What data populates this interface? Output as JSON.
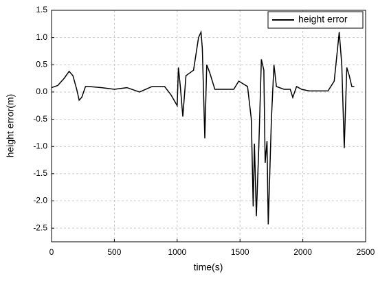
{
  "chart_data": {
    "type": "line",
    "xlabel": "time(s)",
    "ylabel": "height error(m)",
    "xlim": [
      0,
      2500
    ],
    "xticks": [
      0,
      500,
      1000,
      1500,
      2000,
      2500
    ],
    "ylim": [
      -2.75,
      1.5
    ],
    "yticks": [
      1.5,
      {
        "value": 1,
        "label": "1.0"
      },
      0.5,
      {
        "value": 0,
        "label": "0.0"
      },
      -0.5,
      {
        "value": -1,
        "label": "-1.0"
      },
      -1.5,
      {
        "value": -2,
        "label": "-2.0"
      },
      -2.5
    ],
    "grid": true,
    "legend": "upper right",
    "series": [
      {
        "name": "height error",
        "color": "#000000",
        "x": [
          0,
          50,
          100,
          140,
          170,
          200,
          220,
          240,
          270,
          300,
          400,
          500,
          600,
          700,
          800,
          900,
          950,
          1000,
          1010,
          1025,
          1045,
          1070,
          1100,
          1130,
          1170,
          1190,
          1200,
          1220,
          1235,
          1260,
          1300,
          1400,
          1450,
          1490,
          1560,
          1590,
          1605,
          1615,
          1630,
          1650,
          1670,
          1690,
          1700,
          1715,
          1725,
          1750,
          1770,
          1790,
          1850,
          1900,
          1920,
          1950,
          1990,
          2050,
          2200,
          2250,
          2290,
          2310,
          2330,
          2350,
          2370,
          2390,
          2410
        ],
        "values": [
          0.08,
          0.12,
          0.25,
          0.38,
          0.3,
          0.05,
          -0.15,
          -0.1,
          0.1,
          0.1,
          0.08,
          0.05,
          0.08,
          0.0,
          0.1,
          0.1,
          -0.05,
          -0.25,
          0.45,
          0.1,
          -0.45,
          0.3,
          0.35,
          0.4,
          1.0,
          1.1,
          0.8,
          -0.85,
          0.5,
          0.35,
          0.05,
          0.05,
          0.05,
          0.2,
          0.1,
          -0.5,
          -2.1,
          -0.95,
          -2.28,
          -1.0,
          0.6,
          0.4,
          -1.3,
          -0.9,
          -2.43,
          -0.5,
          0.5,
          0.1,
          0.05,
          0.05,
          -0.1,
          0.1,
          0.05,
          0.02,
          0.02,
          0.2,
          1.1,
          0.5,
          -1.03,
          0.45,
          0.3,
          0.1,
          0.1
        ]
      }
    ]
  }
}
